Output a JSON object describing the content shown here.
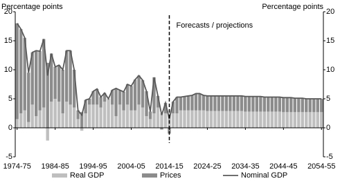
{
  "chart_data": {
    "type": "bar",
    "stacked": true,
    "y_label": "Percentage points",
    "y2_label": "Percentage points",
    "annotation": "Forecasts / projections",
    "categories": [
      "1974-75",
      null,
      null,
      null,
      null,
      null,
      null,
      null,
      null,
      null,
      "1984-85",
      null,
      null,
      null,
      null,
      null,
      null,
      null,
      null,
      null,
      "1994-95",
      null,
      null,
      null,
      null,
      null,
      null,
      null,
      null,
      null,
      "2004-05",
      null,
      null,
      null,
      null,
      null,
      null,
      null,
      null,
      null,
      "2014-15",
      null,
      null,
      null,
      null,
      null,
      null,
      null,
      null,
      null,
      "2024-25",
      null,
      null,
      null,
      null,
      null,
      null,
      null,
      null,
      null,
      "2034-35",
      null,
      null,
      null,
      null,
      null,
      null,
      null,
      null,
      null,
      "2044-45",
      null,
      null,
      null,
      null,
      null,
      null,
      null,
      null,
      null,
      "2054-55"
    ],
    "ylim": [
      -5,
      20
    ],
    "yticks": [
      -5,
      0,
      5,
      10,
      15,
      20
    ],
    "y2lim": [
      -5,
      20
    ],
    "y2ticks": [
      -5,
      0,
      5,
      10,
      15,
      20
    ],
    "series": [
      {
        "name": "Real GDP",
        "type": "bar",
        "color": "#bfbfbf",
        "values": [
          1.5,
          2.5,
          3,
          1,
          4,
          2,
          3,
          3.5,
          -2.2,
          4.5,
          5,
          4.5,
          2.5,
          4.5,
          4,
          3.5,
          1.5,
          -0.5,
          2.5,
          4,
          4,
          4,
          3.5,
          4.5,
          5,
          4,
          2,
          4,
          3,
          4,
          3,
          3,
          4,
          3.5,
          2,
          1.5,
          2.5,
          3.5,
          2.5,
          2.5,
          2.5,
          2.5,
          2.5,
          3,
          3,
          3,
          3,
          3,
          3,
          3,
          2.9,
          2.9,
          2.9,
          2.9,
          2.9,
          2.9,
          2.9,
          2.9,
          2.9,
          2.9,
          2.8,
          2.8,
          2.8,
          2.8,
          2.8,
          2.8,
          2.8,
          2.8,
          2.8,
          2.8,
          2.7,
          2.7,
          2.7,
          2.7,
          2.7,
          2.7,
          2.7,
          2.7,
          2.7,
          2.7,
          2.7
        ]
      },
      {
        "name": "Prices",
        "type": "bar",
        "color": "#8c8c8c",
        "values": [
          16.5,
          14.5,
          12.5,
          8.5,
          9,
          11.3,
          10.2,
          11.8,
          11.2,
          8.3,
          5.5,
          6.3,
          7.5,
          8.8,
          9.3,
          6.5,
          1.5,
          2.7,
          2.3,
          1,
          2.3,
          2.7,
          1.8,
          1.5,
          0,
          2.5,
          4.8,
          2.5,
          3.2,
          3.5,
          4.2,
          5.3,
          5,
          4.7,
          4.3,
          1.3,
          6.2,
          2,
          -0.3,
          1.8,
          -1,
          2,
          2.8,
          2.3,
          2.4,
          2.5,
          2.6,
          2.9,
          2.9,
          2.6,
          2.6,
          2.6,
          2.6,
          2.6,
          2.6,
          2.6,
          2.6,
          2.6,
          2.6,
          2.6,
          2.6,
          2.6,
          2.6,
          2.6,
          2.6,
          2.5,
          2.5,
          2.5,
          2.5,
          2.5,
          2.5,
          2.5,
          2.5,
          2.4,
          2.4,
          2.4,
          2.3,
          2.3,
          2.3,
          2.3,
          2.3
        ]
      },
      {
        "name": "Nominal GDP",
        "type": "line",
        "color": "#595959",
        "values": [
          18,
          17,
          15.5,
          9.5,
          13,
          13.3,
          13.2,
          15.3,
          9,
          12.8,
          10.5,
          10.8,
          10,
          13.3,
          13.3,
          10,
          3,
          2.2,
          4.8,
          5,
          6.3,
          6.7,
          5.3,
          6,
          5,
          6.5,
          6.8,
          6.5,
          6.2,
          7.5,
          7.2,
          8.3,
          9,
          8.2,
          6.3,
          2.8,
          8.7,
          5.5,
          2.2,
          4.3,
          1.5,
          4.5,
          5.3,
          5.3,
          5.4,
          5.5,
          5.6,
          5.9,
          5.9,
          5.6,
          5.5,
          5.5,
          5.5,
          5.5,
          5.5,
          5.5,
          5.5,
          5.5,
          5.5,
          5.5,
          5.4,
          5.4,
          5.4,
          5.4,
          5.4,
          5.3,
          5.3,
          5.3,
          5.3,
          5.3,
          5.2,
          5.2,
          5.2,
          5.1,
          5.1,
          5.1,
          5.0,
          5.0,
          5.0,
          5.0,
          5.0
        ]
      }
    ]
  }
}
